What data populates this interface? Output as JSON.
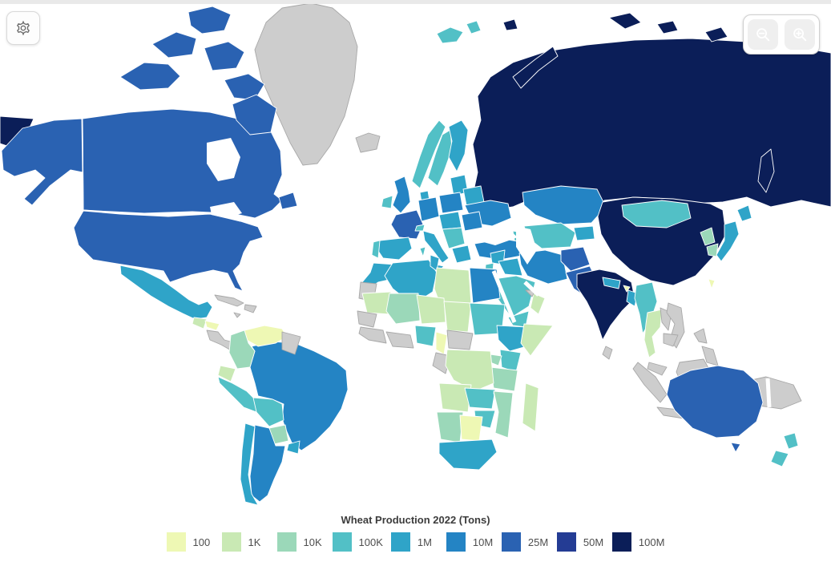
{
  "app": {
    "background": "#ffffff"
  },
  "toolbar": {
    "settings_icon": "gear-icon"
  },
  "zoom_controls": {
    "button_color": "#0e80c0",
    "zoom_out_icon": "magnifier-minus",
    "zoom_in_icon": "magnifier-plus"
  },
  "map": {
    "ocean_color": "#ffffff",
    "no_data_color": "#cdcdcd",
    "no_data_border": "#a8a8a8",
    "border_color": "#ffffff"
  },
  "legend": {
    "title": "Wheat Production 2022 (Tons)",
    "items": [
      {
        "label": "100",
        "color": "#eef8b4"
      },
      {
        "label": "1K",
        "color": "#c9e9b4"
      },
      {
        "label": "10K",
        "color": "#9bd8b9"
      },
      {
        "label": "100K",
        "color": "#52c0c6"
      },
      {
        "label": "1M",
        "color": "#2fa4c8"
      },
      {
        "label": "10M",
        "color": "#2484c4"
      },
      {
        "label": "25M",
        "color": "#2a62b2"
      },
      {
        "label": "50M",
        "color": "#243c94"
      },
      {
        "label": "100M",
        "color": "#0b1e58"
      }
    ]
  },
  "chart_data": {
    "type": "choropleth_map",
    "title": "Wheat Production 2022 (Tons)",
    "year": 2022,
    "unit": "Tons",
    "categories": [
      "100",
      "1K",
      "10K",
      "100K",
      "1M",
      "10M",
      "25M",
      "50M",
      "100M"
    ],
    "palette": {
      "100": "#eef8b4",
      "1K": "#c9e9b4",
      "10K": "#9bd8b9",
      "100K": "#52c0c6",
      "1M": "#2fa4c8",
      "10M": "#2484c4",
      "25M": "#2a62b2",
      "50M": "#243c94",
      "100M": "#0b1e58"
    },
    "no_data": "no-data",
    "regions": [
      {
        "id": "russia",
        "name": "Russia",
        "category": "100M"
      },
      {
        "id": "chukotka",
        "name": "Russia (Chukotka)",
        "category": "100M"
      },
      {
        "id": "novaya-zemlya",
        "name": "Russia (Novaya Zemlya)",
        "category": "100M"
      },
      {
        "id": "arctic-islands-ru",
        "name": "Russia (Arctic Islands)",
        "category": "100M"
      },
      {
        "id": "sakhalin",
        "name": "Russia (Sakhalin)",
        "category": "100M"
      },
      {
        "id": "greenland",
        "name": "Greenland",
        "category": "no-data"
      },
      {
        "id": "canada",
        "name": "Canada",
        "category": "25M"
      },
      {
        "id": "newfoundland",
        "name": "Canada (Newfoundland)",
        "category": "25M"
      },
      {
        "id": "alaska",
        "name": "United States (Alaska)",
        "category": "25M"
      },
      {
        "id": "usa",
        "name": "United States",
        "category": "25M"
      },
      {
        "id": "mexico",
        "name": "Mexico",
        "category": "1M"
      },
      {
        "id": "guatemala",
        "name": "Guatemala",
        "category": "1K"
      },
      {
        "id": "honduras",
        "name": "Honduras",
        "category": "100"
      },
      {
        "id": "central-america",
        "name": "Central America",
        "category": "no-data"
      },
      {
        "id": "cuba",
        "name": "Cuba",
        "category": "no-data"
      },
      {
        "id": "hispaniola",
        "name": "Hispaniola",
        "category": "no-data"
      },
      {
        "id": "jamaica",
        "name": "Jamaica",
        "category": "no-data"
      },
      {
        "id": "brazil",
        "name": "Brazil",
        "category": "10M"
      },
      {
        "id": "venezuela",
        "name": "Venezuela",
        "category": "100"
      },
      {
        "id": "guyanas",
        "name": "Guyana / Suriname",
        "category": "no-data"
      },
      {
        "id": "colombia",
        "name": "Colombia",
        "category": "10K"
      },
      {
        "id": "ecuador",
        "name": "Ecuador",
        "category": "1K"
      },
      {
        "id": "peru",
        "name": "Peru",
        "category": "100K"
      },
      {
        "id": "bolivia",
        "name": "Bolivia",
        "category": "100K"
      },
      {
        "id": "paraguay",
        "name": "Paraguay",
        "category": "10K"
      },
      {
        "id": "uruguay",
        "name": "Uruguay",
        "category": "1M"
      },
      {
        "id": "argentina",
        "name": "Argentina",
        "category": "10M"
      },
      {
        "id": "chile",
        "name": "Chile",
        "category": "1M"
      },
      {
        "id": "iceland",
        "name": "Iceland",
        "category": "no-data"
      },
      {
        "id": "united-kingdom",
        "name": "United Kingdom",
        "category": "10M"
      },
      {
        "id": "ireland",
        "name": "Ireland",
        "category": "100K"
      },
      {
        "id": "norway",
        "name": "Norway",
        "category": "100K"
      },
      {
        "id": "svalbard",
        "name": "Svalbard",
        "category": "100K"
      },
      {
        "id": "sweden",
        "name": "Sweden",
        "category": "100K"
      },
      {
        "id": "finland",
        "name": "Finland",
        "category": "1M"
      },
      {
        "id": "denmark",
        "name": "Denmark",
        "category": "1M"
      },
      {
        "id": "baltics",
        "name": "Baltic States",
        "category": "1M"
      },
      {
        "id": "germany",
        "name": "Germany",
        "category": "10M"
      },
      {
        "id": "poland",
        "name": "Poland",
        "category": "10M"
      },
      {
        "id": "belarus",
        "name": "Belarus",
        "category": "1M"
      },
      {
        "id": "ukraine",
        "name": "Ukraine",
        "category": "10M"
      },
      {
        "id": "france",
        "name": "France",
        "category": "25M"
      },
      {
        "id": "spain",
        "name": "Spain",
        "category": "1M"
      },
      {
        "id": "portugal",
        "name": "Portugal",
        "category": "100K"
      },
      {
        "id": "italy",
        "name": "Italy",
        "category": "1M"
      },
      {
        "id": "sicily",
        "name": "Italy (Sicily)",
        "category": "1M"
      },
      {
        "id": "sardinia",
        "name": "Italy (Sardinia)",
        "category": "100K"
      },
      {
        "id": "switzerland",
        "name": "Switzerland",
        "category": "100K"
      },
      {
        "id": "central-europe",
        "name": "Czechia / Austria / Hungary",
        "category": "1M"
      },
      {
        "id": "balkans",
        "name": "Balkans",
        "category": "100K"
      },
      {
        "id": "romania",
        "name": "Romania",
        "category": "10M"
      },
      {
        "id": "greece",
        "name": "Greece",
        "category": "1M"
      },
      {
        "id": "turkey",
        "name": "Turkey",
        "category": "10M"
      },
      {
        "id": "caucasus",
        "name": "Caucasus",
        "category": "100K"
      },
      {
        "id": "kazakhstan",
        "name": "Kazakhstan",
        "category": "10M"
      },
      {
        "id": "central-asia",
        "name": "Uzbekistan / Turkmenistan",
        "category": "100K"
      },
      {
        "id": "kyrgyzstan",
        "name": "Kyrgyzstan / Tajikistan",
        "category": "1M"
      },
      {
        "id": "syria",
        "name": "Syria",
        "category": "1M"
      },
      {
        "id": "israel-jordan",
        "name": "Israel / Jordan",
        "category": "100K"
      },
      {
        "id": "iraq",
        "name": "Iraq",
        "category": "1M"
      },
      {
        "id": "iran",
        "name": "Iran",
        "category": "10M"
      },
      {
        "id": "saudi-arabia",
        "name": "Saudi Arabia",
        "category": "100K"
      },
      {
        "id": "yemen",
        "name": "Yemen",
        "category": "100K"
      },
      {
        "id": "oman",
        "name": "Oman",
        "category": "1K"
      },
      {
        "id": "gulf-states",
        "name": "Gulf States",
        "category": "no-data"
      },
      {
        "id": "afghanistan",
        "name": "Afghanistan",
        "category": "25M"
      },
      {
        "id": "pakistan",
        "name": "Pakistan",
        "category": "25M"
      },
      {
        "id": "india",
        "name": "India",
        "category": "100M"
      },
      {
        "id": "nepal",
        "name": "Nepal",
        "category": "1M"
      },
      {
        "id": "bhutan",
        "name": "Bhutan",
        "category": "100"
      },
      {
        "id": "bangladesh",
        "name": "Bangladesh",
        "category": "1M"
      },
      {
        "id": "sri-lanka",
        "name": "Sri Lanka",
        "category": "no-data"
      },
      {
        "id": "china",
        "name": "China",
        "category": "100M"
      },
      {
        "id": "mongolia",
        "name": "Mongolia",
        "category": "100K"
      },
      {
        "id": "north-korea",
        "name": "North Korea",
        "category": "10K"
      },
      {
        "id": "south-korea",
        "name": "South Korea",
        "category": "10K"
      },
      {
        "id": "japan",
        "name": "Japan",
        "category": "1M"
      },
      {
        "id": "taiwan",
        "name": "Taiwan",
        "category": "100"
      },
      {
        "id": "myanmar",
        "name": "Myanmar",
        "category": "100K"
      },
      {
        "id": "thailand",
        "name": "Thailand",
        "category": "1K"
      },
      {
        "id": "laos",
        "name": "Laos",
        "category": "no-data"
      },
      {
        "id": "vietnam",
        "name": "Vietnam",
        "category": "no-data"
      },
      {
        "id": "cambodia",
        "name": "Cambodia",
        "category": "no-data"
      },
      {
        "id": "malaysia",
        "name": "Malaysia",
        "category": "no-data"
      },
      {
        "id": "borneo",
        "name": "Borneo",
        "category": "no-data"
      },
      {
        "id": "sumatra",
        "name": "Indonesia (Sumatra)",
        "category": "no-data"
      },
      {
        "id": "java",
        "name": "Indonesia (Java)",
        "category": "no-data"
      },
      {
        "id": "sulawesi",
        "name": "Indonesia (Sulawesi)",
        "category": "no-data"
      },
      {
        "id": "philippines",
        "name": "Philippines",
        "category": "no-data"
      },
      {
        "id": "new-guinea",
        "name": "New Guinea",
        "category": "no-data"
      },
      {
        "id": "australia",
        "name": "Australia",
        "category": "25M"
      },
      {
        "id": "tasmania",
        "name": "Australia (Tasmania)",
        "category": "25M"
      },
      {
        "id": "new-zealand",
        "name": "New Zealand",
        "category": "100K"
      },
      {
        "id": "morocco",
        "name": "Morocco",
        "category": "1M"
      },
      {
        "id": "western-sahara",
        "name": "Western Sahara",
        "category": "no-data"
      },
      {
        "id": "algeria",
        "name": "Algeria",
        "category": "1M"
      },
      {
        "id": "tunisia",
        "name": "Tunisia",
        "category": "1M"
      },
      {
        "id": "libya",
        "name": "Libya",
        "category": "1K"
      },
      {
        "id": "egypt",
        "name": "Egypt",
        "category": "10M"
      },
      {
        "id": "mauritania",
        "name": "Mauritania",
        "category": "1K"
      },
      {
        "id": "mali",
        "name": "Mali",
        "category": "10K"
      },
      {
        "id": "niger",
        "name": "Niger",
        "category": "1K"
      },
      {
        "id": "chad",
        "name": "Chad",
        "category": "1K"
      },
      {
        "id": "sudan",
        "name": "Sudan",
        "category": "100K"
      },
      {
        "id": "west-africa",
        "name": "West Africa",
        "category": "no-data"
      },
      {
        "id": "nigeria",
        "name": "Nigeria",
        "category": "100K"
      },
      {
        "id": "cameroon",
        "name": "Cameroon",
        "category": "100"
      },
      {
        "id": "car",
        "name": "Central African Republic",
        "category": "no-data"
      },
      {
        "id": "congo-gabon",
        "name": "Congo / Gabon",
        "category": "no-data"
      },
      {
        "id": "ethiopia",
        "name": "Ethiopia",
        "category": "1M"
      },
      {
        "id": "somalia",
        "name": "Somalia",
        "category": "1K"
      },
      {
        "id": "kenya",
        "name": "Kenya",
        "category": "100K"
      },
      {
        "id": "uganda",
        "name": "Uganda",
        "category": "10K"
      },
      {
        "id": "tanzania",
        "name": "Tanzania",
        "category": "10K"
      },
      {
        "id": "drc",
        "name": "DR Congo",
        "category": "1K"
      },
      {
        "id": "angola",
        "name": "Angola",
        "category": "1K"
      },
      {
        "id": "zambia",
        "name": "Zambia",
        "category": "100K"
      },
      {
        "id": "malawi",
        "name": "Malawi",
        "category": "100K"
      },
      {
        "id": "zimbabwe",
        "name": "Zimbabwe",
        "category": "100K"
      },
      {
        "id": "mozambique",
        "name": "Mozambique",
        "category": "10K"
      },
      {
        "id": "namibia",
        "name": "Namibia",
        "category": "10K"
      },
      {
        "id": "botswana",
        "name": "Botswana",
        "category": "100"
      },
      {
        "id": "south-africa",
        "name": "South Africa",
        "category": "1M"
      },
      {
        "id": "madagascar",
        "name": "Madagascar",
        "category": "1K"
      }
    ]
  }
}
